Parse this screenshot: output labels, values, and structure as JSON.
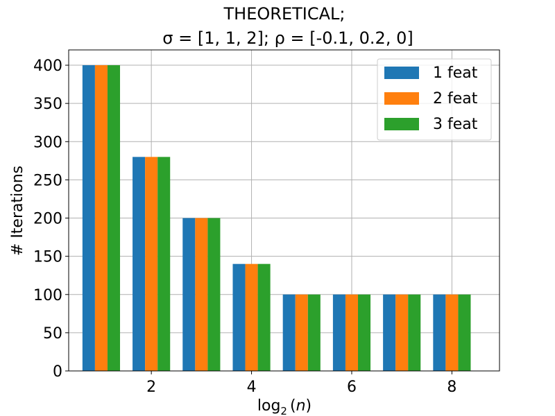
{
  "chart_data": {
    "type": "bar",
    "title_line1": "THEORETICAL;",
    "title_line2": "σ = [1, 1, 2];  ρ = [-0.1, 0.2, 0]",
    "xlabel": "log₂(n)",
    "ylabel": "# Iterations",
    "x": [
      1,
      2,
      3,
      4,
      5,
      6,
      7,
      8
    ],
    "xticks": [
      "2",
      "4",
      "6",
      "8"
    ],
    "xtick_values": [
      2,
      4,
      6,
      8
    ],
    "yticks": [
      "0",
      "50",
      "100",
      "150",
      "200",
      "250",
      "300",
      "350",
      "400"
    ],
    "ytick_values": [
      0,
      50,
      100,
      150,
      200,
      250,
      300,
      350,
      400
    ],
    "xlim": [
      0.35,
      8.95
    ],
    "ylim": [
      0,
      420
    ],
    "grid": true,
    "legend_position": "top-right",
    "series": [
      {
        "name": "1 feat",
        "color": "#1f77b4",
        "values": [
          400,
          280,
          200,
          140,
          100,
          100,
          100,
          100
        ]
      },
      {
        "name": "2 feat",
        "color": "#ff7f0e",
        "values": [
          400,
          280,
          200,
          140,
          100,
          100,
          100,
          100
        ]
      },
      {
        "name": "3 feat",
        "color": "#2ca02c",
        "values": [
          400,
          280,
          200,
          140,
          100,
          100,
          100,
          100
        ]
      }
    ]
  }
}
